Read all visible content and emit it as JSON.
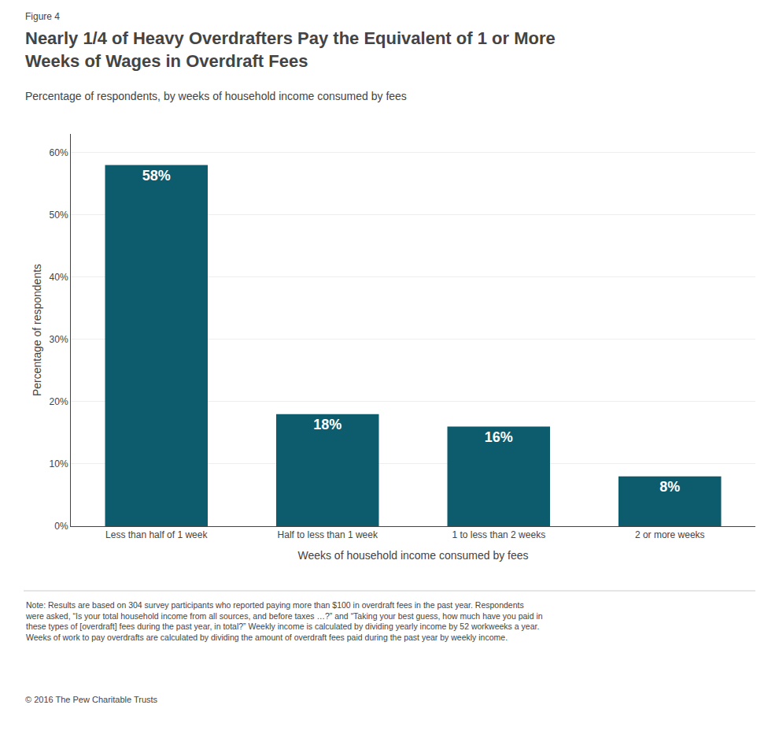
{
  "chart_data": {
    "type": "bar",
    "figure_label": "Figure 4",
    "title": "Nearly 1/4 of Heavy Overdrafters Pay the Equivalent of 1 or More\nWeeks of Wages in Overdraft Fees",
    "subtitle": "Percentage of respondents, by weeks of household income consumed by fees",
    "xlabel": "Weeks of household income consumed by fees",
    "ylabel": "Percentage of respondents",
    "categories": [
      "Less than half of 1 week",
      "Half to less than 1 week",
      "1 to less than 2 weeks",
      "2 or more weeks"
    ],
    "values": [
      58,
      18,
      16,
      8
    ],
    "value_labels": [
      "58%",
      "18%",
      "16%",
      "8%"
    ],
    "data_labels": true,
    "color": "#0d5c6e",
    "ylim": [
      0,
      63
    ],
    "yticks": [
      {
        "value": 0,
        "label": "0%"
      },
      {
        "value": 10,
        "label": "10%"
      },
      {
        "value": 20,
        "label": "20%"
      },
      {
        "value": 30,
        "label": "30%"
      },
      {
        "value": 40,
        "label": "40%"
      },
      {
        "value": 50,
        "label": "50%"
      },
      {
        "value": 60,
        "label": "60%"
      }
    ],
    "grid": true,
    "note": "Note: Results are based on 304 survey participants who reported paying more than $100 in overdraft fees in the past year. Respondents\nwere asked, “Is your total household income from all sources, and before taxes …?” and “Taking your best guess, how much have you paid in\nthese types of [overdraft] fees during the past year, in total?” Weekly income is calculated by dividing yearly income by 52 workweeks a year.\nWeeks of work to pay overdrafts are calculated by dividing the amount of overdraft fees paid during the past year by weekly income.",
    "copyright": "© 2016 The Pew Charitable Trusts"
  }
}
